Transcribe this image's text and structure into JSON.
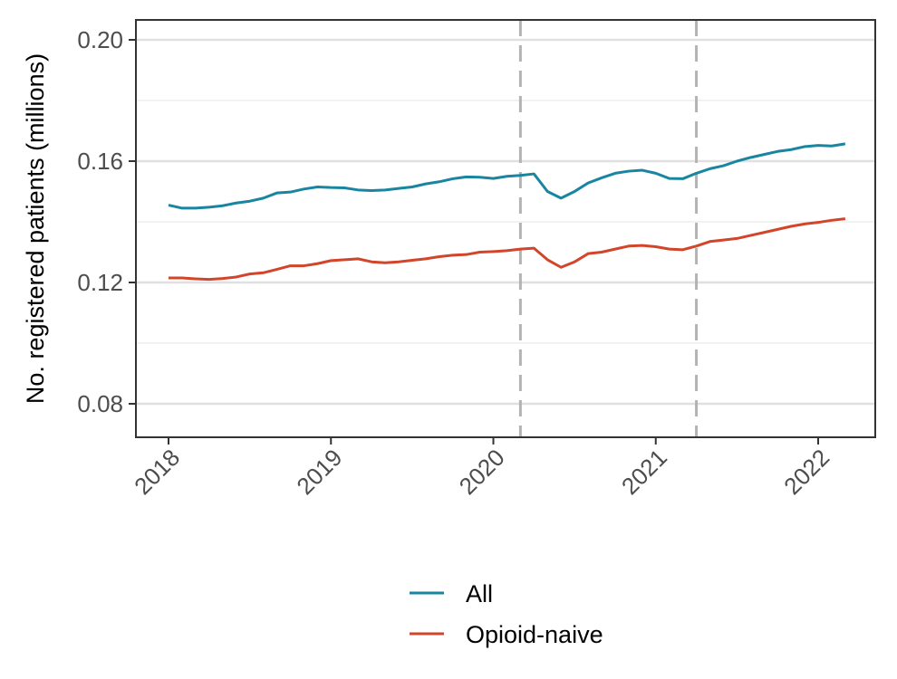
{
  "chart_data": {
    "type": "line",
    "title": "",
    "xlabel": "",
    "ylabel": "No. registered patients (millions)",
    "xlim": [
      "2018-01",
      "2022-03"
    ],
    "ylim": [
      0.068,
      0.207
    ],
    "x_ticks": [
      "2018",
      "2019",
      "2020",
      "2021",
      "2022"
    ],
    "y_ticks": [
      "0.08",
      "0.12",
      "0.16",
      "0.20"
    ],
    "y_tick_values": [
      0.08,
      0.12,
      0.16,
      0.2
    ],
    "y_minor_grid": [
      0.1,
      0.14,
      0.18
    ],
    "grid": true,
    "legend_position": "bottom",
    "vertical_reference_lines": [
      "2020-03",
      "2021-04"
    ],
    "x": [
      "2018-01",
      "2018-02",
      "2018-03",
      "2018-04",
      "2018-05",
      "2018-06",
      "2018-07",
      "2018-08",
      "2018-09",
      "2018-10",
      "2018-11",
      "2018-12",
      "2019-01",
      "2019-02",
      "2019-03",
      "2019-04",
      "2019-05",
      "2019-06",
      "2019-07",
      "2019-08",
      "2019-09",
      "2019-10",
      "2019-11",
      "2019-12",
      "2020-01",
      "2020-02",
      "2020-03",
      "2020-04",
      "2020-05",
      "2020-06",
      "2020-07",
      "2020-08",
      "2020-09",
      "2020-10",
      "2020-11",
      "2020-12",
      "2021-01",
      "2021-02",
      "2021-03",
      "2021-04",
      "2021-05",
      "2021-06",
      "2021-07",
      "2021-08",
      "2021-09",
      "2021-10",
      "2021-11",
      "2021-12",
      "2022-01",
      "2022-02",
      "2022-03"
    ],
    "series": [
      {
        "name": "All",
        "color": "#1a85a0",
        "values": [
          0.1455,
          0.1445,
          0.1445,
          0.1448,
          0.1453,
          0.1462,
          0.1468,
          0.1478,
          0.1495,
          0.1498,
          0.1508,
          0.1515,
          0.1513,
          0.1512,
          0.1505,
          0.1503,
          0.1505,
          0.151,
          0.1515,
          0.1525,
          0.1532,
          0.1542,
          0.1548,
          0.1547,
          0.1543,
          0.155,
          0.1553,
          0.1558,
          0.15,
          0.1478,
          0.15,
          0.1528,
          0.1545,
          0.156,
          0.1567,
          0.157,
          0.156,
          0.1543,
          0.1542,
          0.156,
          0.1575,
          0.1585,
          0.16,
          0.1612,
          0.1622,
          0.1632,
          0.1638,
          0.1648,
          0.1652,
          0.165,
          0.1657
        ]
      },
      {
        "name": "Opioid-naive",
        "color": "#d2452b",
        "values": [
          0.1215,
          0.1215,
          0.1212,
          0.121,
          0.1213,
          0.1218,
          0.1228,
          0.1232,
          0.1243,
          0.1255,
          0.1255,
          0.1262,
          0.1272,
          0.1275,
          0.1278,
          0.1268,
          0.1265,
          0.1268,
          0.1273,
          0.1278,
          0.1285,
          0.129,
          0.1292,
          0.13,
          0.1302,
          0.1305,
          0.131,
          0.1313,
          0.1275,
          0.125,
          0.1268,
          0.1295,
          0.13,
          0.131,
          0.132,
          0.1322,
          0.1318,
          0.131,
          0.1308,
          0.132,
          0.1335,
          0.134,
          0.1345,
          0.1355,
          0.1365,
          0.1375,
          0.1385,
          0.1393,
          0.1398,
          0.1405,
          0.141
        ]
      }
    ]
  }
}
